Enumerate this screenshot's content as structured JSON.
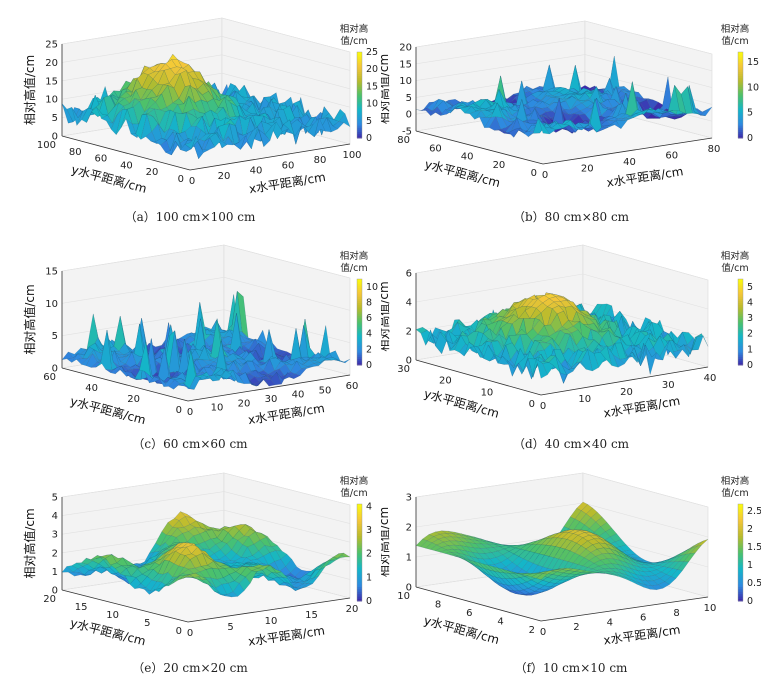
{
  "chart_data": [
    {
      "type": "surface",
      "caption": "（a）100 cm×100 cm",
      "xlabel": "x水平距离/cm",
      "ylabel": "y水平距离/cm",
      "zlabel": "相对高值/cm",
      "colorbar_title": [
        "相对高",
        "值/cm"
      ],
      "xticks": [
        "0",
        "20",
        "40",
        "60",
        "80",
        "100"
      ],
      "yticks": [
        "0",
        "20",
        "40",
        "60",
        "80",
        "100"
      ],
      "zticks": [
        "0",
        "5",
        "10",
        "15",
        "20",
        "25"
      ],
      "cbticks": [
        "0",
        "5",
        "10",
        "15",
        "20",
        "25"
      ],
      "zlim": [
        0,
        25
      ],
      "cblim": [
        0,
        25
      ]
    },
    {
      "type": "surface",
      "caption": "（b）80 cm×80 cm",
      "xlabel": "x水平距离/cm",
      "ylabel": "y水平距离/cm",
      "zlabel": "相对高值/cm",
      "colorbar_title": [
        "相对高",
        "值/cm"
      ],
      "xticks": [
        "0",
        "20",
        "40",
        "60",
        "80"
      ],
      "yticks": [
        "0",
        "20",
        "40",
        "60",
        "80"
      ],
      "zticks": [
        "-5",
        "0",
        "5",
        "10",
        "15",
        "20"
      ],
      "cbticks": [
        "0",
        "5",
        "10",
        "15"
      ],
      "zlim": [
        -5,
        20
      ],
      "cblim": [
        0,
        17
      ]
    },
    {
      "type": "surface",
      "caption": "（c）60 cm×60 cm",
      "xlabel": "x水平距离/cm",
      "ylabel": "y水平距离/cm",
      "zlabel": "相对高值/cm",
      "colorbar_title": [
        "相对高",
        "值/cm"
      ],
      "xticks": [
        "0",
        "10",
        "20",
        "30",
        "40",
        "50",
        "60"
      ],
      "yticks": [
        "0",
        "20",
        "40",
        "60"
      ],
      "zticks": [
        "0",
        "5",
        "10",
        "15"
      ],
      "cbticks": [
        "0",
        "2",
        "4",
        "6",
        "8",
        "10"
      ],
      "zlim": [
        0,
        15
      ],
      "cblim": [
        0,
        11
      ]
    },
    {
      "type": "surface",
      "caption": "（d）40 cm×40 cm",
      "xlabel": "x水平距离/cm",
      "ylabel": "y水平距离/cm",
      "zlabel": "相对高值/cm",
      "colorbar_title": [
        "相对高",
        "值/cm"
      ],
      "xticks": [
        "0",
        "10",
        "20",
        "30",
        "40"
      ],
      "yticks": [
        "0",
        "10",
        "20",
        "30"
      ],
      "zticks": [
        "0",
        "2",
        "4",
        "6"
      ],
      "cbticks": [
        "0",
        "1",
        "2",
        "3",
        "4",
        "5"
      ],
      "zlim": [
        0,
        6
      ],
      "cblim": [
        0,
        5.5
      ]
    },
    {
      "type": "surface",
      "caption": "（e）20 cm×20 cm",
      "xlabel": "x水平距离/cm",
      "ylabel": "y水平距离/cm",
      "zlabel": "相对高值/cm",
      "colorbar_title": [
        "相对高",
        "值/cm"
      ],
      "xticks": [
        "0",
        "5",
        "10",
        "15",
        "20"
      ],
      "yticks": [
        "0",
        "5",
        "10",
        "15",
        "20"
      ],
      "zticks": [
        "0",
        "1",
        "2",
        "3",
        "4",
        "5"
      ],
      "cbticks": [
        "0",
        "1",
        "2",
        "3",
        "4"
      ],
      "zlim": [
        0,
        5
      ],
      "cblim": [
        0,
        4.1
      ]
    },
    {
      "type": "surface",
      "caption": "（f）10 cm×10 cm",
      "xlabel": "x水平距离/cm",
      "ylabel": "y水平距离/cm",
      "zlabel": "相对高值/cm",
      "colorbar_title": [
        "相对高",
        "值/cm"
      ],
      "xticks": [
        "0",
        "2",
        "4",
        "6",
        "8",
        "10"
      ],
      "yticks": [
        "2",
        "4",
        "6",
        "8",
        "10"
      ],
      "zticks": [
        "0",
        "1",
        "2",
        "3"
      ],
      "cbticks": [
        "0",
        "0.5",
        "1",
        "1.5",
        "2",
        "2.5"
      ],
      "zlim": [
        0,
        3
      ],
      "cblim": [
        0,
        2.7
      ]
    }
  ],
  "colors": {
    "colormap": [
      "#3e26a8",
      "#2e8ae0",
      "#14b6c8",
      "#4cc16b",
      "#b8bb2c",
      "#f4c63a",
      "#f9fb0e"
    ]
  }
}
